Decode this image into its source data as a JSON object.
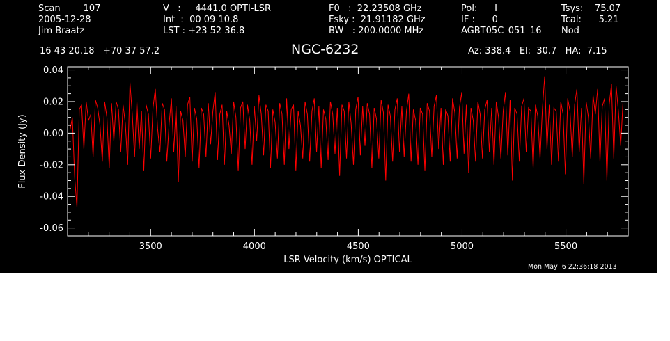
{
  "header": {
    "col1": [
      "Scan        107",
      "2005-12-28",
      "Jim Braatz"
    ],
    "col2": [
      "V   :     4441.0 OPTI-LSR",
      "Int  :  00 09 10.8",
      "LST : +23 52 36.8"
    ],
    "col3": [
      "F0   :  22.23508 GHz",
      "Fsky :  21.91182 GHz",
      "BW   : 200.0000 MHz"
    ],
    "col4": [
      "Pol:      I",
      "IF :      0",
      "AGBT05C_051_16"
    ],
    "col5": [
      "Tsys:    75.07",
      "Tcal:      5.21",
      "Nod"
    ],
    "coords": "16 43 20.18   +70 37 57.2",
    "azelha": "Az: 338.4   El:  30.7   HA:  7.15"
  },
  "title": "NGC-6232",
  "footer_date": "Mon May  6 22:36:18 2013",
  "colors": {
    "background": "#000000",
    "axes": "#ffffff",
    "trace": "#ff0000"
  },
  "chart_data": {
    "type": "line",
    "title": "NGC-6232",
    "xlabel": "LSR Velocity (km/s) OPTICAL",
    "ylabel": "Flux Density (Jy)",
    "xlim": [
      3100,
      5800
    ],
    "ylim": [
      -0.065,
      0.042
    ],
    "x_ticks": [
      3500,
      4000,
      4500,
      5000,
      5500
    ],
    "x_tick_labels": [
      "3500",
      "4000",
      "4500",
      "5000",
      "5500"
    ],
    "y_ticks": [
      -0.06,
      -0.04,
      -0.02,
      0.0,
      0.02,
      0.04
    ],
    "y_tick_labels": [
      "-0.06",
      "-0.04",
      "-0.02",
      "0.00",
      "0.02",
      "0.04"
    ],
    "grid": false,
    "series": [
      {
        "x_start": 3112,
        "x_end": 5775,
        "values": [
          0.002,
          0.01,
          -0.028,
          -0.047,
          0.015,
          0.018,
          -0.01,
          0.02,
          0.008,
          0.012,
          -0.015,
          0.021,
          0.016,
          0.005,
          -0.018,
          0.02,
          0.01,
          -0.022,
          0.019,
          -0.005,
          0.02,
          0.015,
          -0.012,
          0.018,
          0.006,
          -0.02,
          0.032,
          0.012,
          -0.015,
          0.02,
          -0.01,
          0.014,
          -0.024,
          0.018,
          0.012,
          -0.016,
          0.016,
          0.028,
          0.003,
          -0.012,
          0.019,
          0.015,
          -0.018,
          0.006,
          0.022,
          -0.012,
          0.017,
          -0.031,
          0.014,
          0.008,
          -0.015,
          0.018,
          0.023,
          -0.018,
          0.016,
          0.009,
          -0.022,
          0.016,
          0.012,
          -0.015,
          0.019,
          -0.007,
          0.014,
          0.026,
          -0.017,
          0.012,
          0.018,
          -0.02,
          0.014,
          0.005,
          -0.013,
          0.02,
          0.01,
          -0.024,
          0.016,
          0.02,
          -0.01,
          0.018,
          0.008,
          -0.02,
          0.017,
          -0.005,
          0.024,
          0.012,
          -0.014,
          0.018,
          0.014,
          -0.022,
          0.015,
          0.007,
          -0.016,
          0.019,
          0.012,
          -0.02,
          0.022,
          -0.01,
          0.015,
          0.018,
          -0.024,
          0.014,
          0.005,
          -0.016,
          0.02,
          0.012,
          -0.018,
          0.014,
          0.022,
          -0.012,
          0.017,
          -0.022,
          0.015,
          0.009,
          -0.017,
          0.02,
          0.012,
          -0.013,
          0.016,
          -0.027,
          0.018,
          0.014,
          -0.016,
          0.02,
          0.006,
          -0.02,
          0.015,
          0.023,
          -0.014,
          0.017,
          -0.008,
          0.019,
          0.012,
          -0.022,
          0.016,
          0.009,
          -0.016,
          0.021,
          0.013,
          -0.03,
          0.018,
          0.011,
          -0.018,
          0.015,
          0.022,
          -0.012,
          0.017,
          -0.015,
          0.014,
          0.025,
          -0.018,
          0.015,
          0.008,
          -0.02,
          0.016,
          0.012,
          -0.024,
          0.019,
          0.014,
          -0.015,
          0.017,
          0.024,
          -0.01,
          0.016,
          -0.02,
          0.015,
          0.011,
          -0.018,
          0.022,
          0.013,
          -0.016,
          0.016,
          0.026,
          -0.013,
          0.018,
          -0.025,
          0.016,
          0.008,
          -0.018,
          0.02,
          0.012,
          -0.016,
          0.015,
          0.021,
          -0.012,
          0.016,
          -0.02,
          0.02,
          0.01,
          -0.016,
          0.014,
          0.026,
          -0.014,
          0.021,
          -0.03,
          0.016,
          0.012,
          -0.018,
          0.017,
          0.022,
          -0.012,
          0.016,
          0.014,
          -0.022,
          0.018,
          0.011,
          -0.016,
          0.015,
          0.036,
          -0.01,
          0.018,
          -0.02,
          0.016,
          0.014,
          -0.018,
          0.02,
          0.012,
          -0.026,
          0.022,
          0.014,
          -0.015,
          0.018,
          0.028,
          -0.012,
          0.016,
          -0.032,
          0.02,
          0.01,
          -0.016,
          0.024,
          0.012,
          0.028,
          -0.018,
          0.017,
          0.022,
          -0.03,
          0.018,
          0.031,
          -0.016,
          0.03,
          0.014,
          -0.008,
          0.02
        ]
      }
    ]
  }
}
